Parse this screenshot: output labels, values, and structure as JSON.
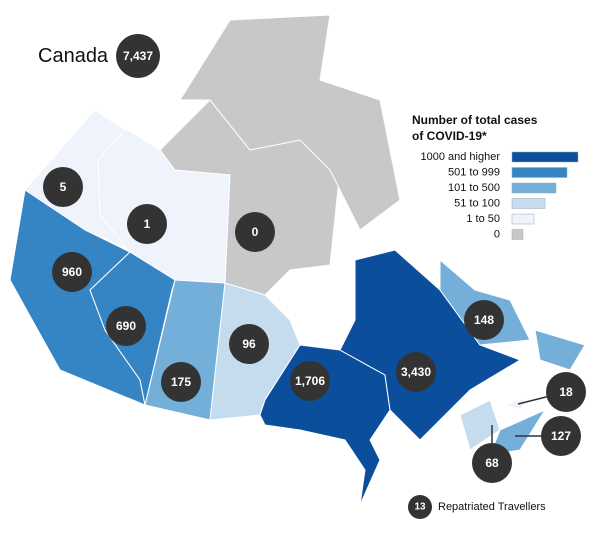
{
  "title": "Canada",
  "total": "7,437",
  "legend": {
    "title_lines": [
      "Number of total cases",
      "of COVID-19*"
    ],
    "items": [
      {
        "label": "1000 and higher",
        "color": "#0b4f9c"
      },
      {
        "label": "501 to 999",
        "color": "#3584c4"
      },
      {
        "label": "101 to 500",
        "color": "#74afd9"
      },
      {
        "label": "51 to 100",
        "color": "#c5dcef"
      },
      {
        "label": "1 to 50",
        "color": "#eef3fc"
      },
      {
        "label": "0",
        "color": "#c8c8c8"
      }
    ]
  },
  "regions": [
    {
      "cases": "5",
      "color": "#eef3fc"
    },
    {
      "cases": "1",
      "color": "#eef3fc"
    },
    {
      "cases": "0",
      "color": "#c8c8c8"
    },
    {
      "cases": "960",
      "color": "#3584c4"
    },
    {
      "cases": "690",
      "color": "#3584c4"
    },
    {
      "cases": "175",
      "color": "#74afd9"
    },
    {
      "cases": "96",
      "color": "#c5dcef"
    },
    {
      "cases": "1,706",
      "color": "#0b4f9c"
    },
    {
      "cases": "3,430",
      "color": "#0b4f9c"
    },
    {
      "cases": "148",
      "color": "#74afd9"
    },
    {
      "cases": "68",
      "color": "#c5dcef"
    },
    {
      "cases": "127",
      "color": "#74afd9"
    },
    {
      "cases": "18",
      "color": "#eef3fc"
    }
  ],
  "repatriated": {
    "cases": "13",
    "label": "Repatriated Travellers"
  }
}
